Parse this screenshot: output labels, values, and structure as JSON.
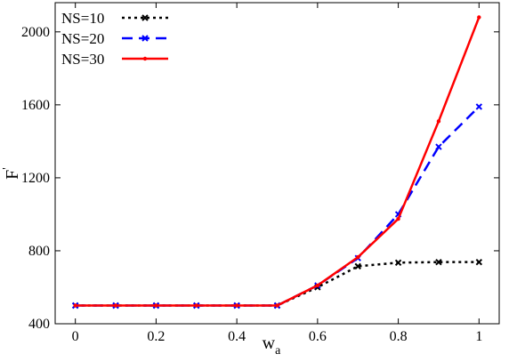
{
  "chart_data": {
    "type": "line",
    "title": "",
    "xlabel": "w",
    "xlabel_sub": "a",
    "ylabel": "F",
    "ylabel_sup": "'",
    "xlim": [
      -0.05,
      1.05
    ],
    "ylim": [
      400,
      2160
    ],
    "xticks": [
      0,
      0.2,
      0.4,
      0.6,
      0.8,
      1
    ],
    "xtick_labels": [
      "0",
      "0.2",
      "0.4",
      "0.6",
      "0.8",
      "1"
    ],
    "yticks": [
      400,
      800,
      1200,
      1600,
      2000
    ],
    "ytick_labels": [
      "400",
      "800",
      "1200",
      "1600",
      "2000"
    ],
    "grid": false,
    "legend_position": "top-left",
    "x": [
      0,
      0.1,
      0.2,
      0.3,
      0.4,
      0.5,
      0.6,
      0.7,
      0.8,
      0.9,
      1.0
    ],
    "series": [
      {
        "name": "NS=10",
        "color": "#000000",
        "line_style": "dotted",
        "marker": "x",
        "values": [
          500,
          500,
          500,
          500,
          500,
          500,
          600,
          715,
          735,
          738,
          738
        ]
      },
      {
        "name": "NS=20",
        "color": "#0000ff",
        "line_style": "dashed",
        "marker": "x",
        "values": [
          500,
          500,
          500,
          500,
          500,
          500,
          610,
          760,
          1000,
          1370,
          1590
        ]
      },
      {
        "name": "NS=30",
        "color": "#ff0000",
        "line_style": "solid",
        "marker": "dot",
        "values": [
          500,
          500,
          500,
          500,
          500,
          500,
          610,
          765,
          975,
          1510,
          2080
        ]
      }
    ]
  }
}
